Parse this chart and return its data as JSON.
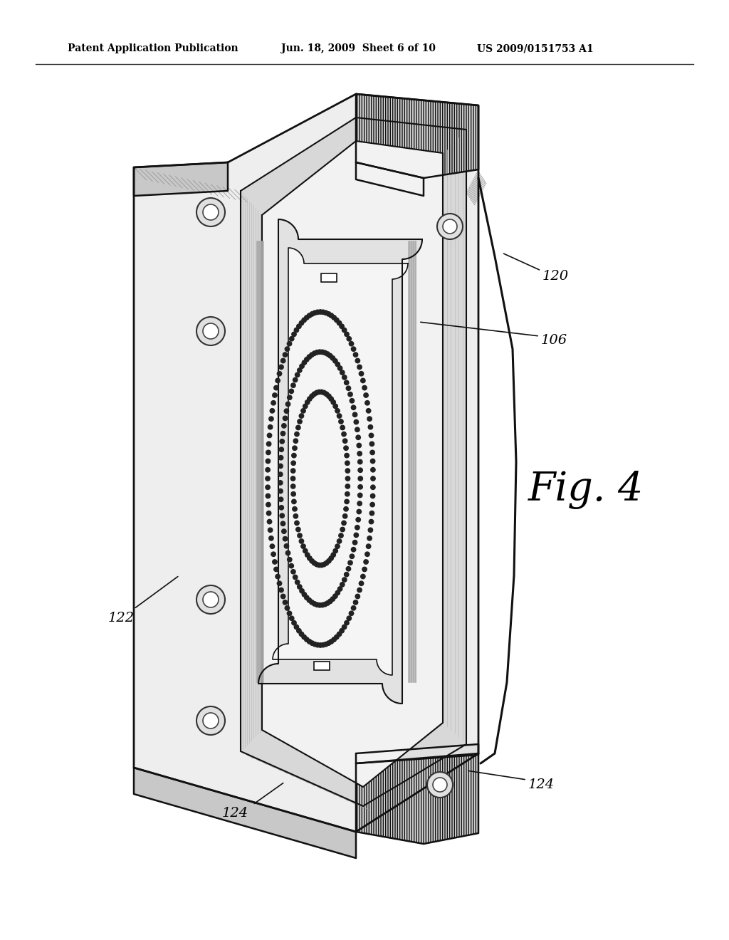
{
  "header_left": "Patent Application Publication",
  "header_mid": "Jun. 18, 2009  Sheet 6 of 10",
  "header_right": "US 2009/0151753 A1",
  "fig_label": "Fig. 4",
  "label_120": "120",
  "label_106": "106",
  "label_122": "122",
  "label_124": "124",
  "bg_color": "#ffffff",
  "line_color": "#111111",
  "fill_light": "#eeeeee",
  "fill_mid": "#d8d8d8",
  "fill_dark": "#c0c0c0",
  "dot_color": "#222222"
}
